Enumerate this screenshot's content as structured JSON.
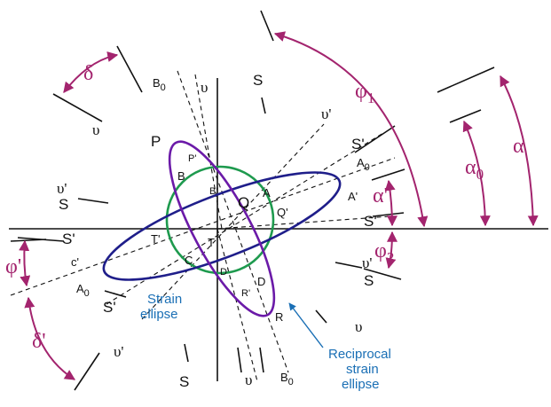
{
  "colors": {
    "strain_ellipse": "#1f1e8a",
    "reciprocal_ellipse": "#6b1aa8",
    "circle": "#1e9a4e",
    "angle_arrows": "#a3246e",
    "callout": "#1a6fb5",
    "lines": "#111111"
  },
  "labels": {
    "phi1": "φ",
    "phi1_sub": "1",
    "phi2": "φ",
    "phi2_sub": "2",
    "phi_prime": "φ'",
    "delta": "δ",
    "delta_prime": "δ'",
    "alpha": "α",
    "alpha0": "α",
    "alpha0_sub": "0",
    "alpha_prime": "α'",
    "S": "S",
    "S_prime": "S'",
    "upsilon": "υ",
    "upsilon_prime": "υ'",
    "B0": "B",
    "B0_sub": "0",
    "A0": "A",
    "A0_sub": "0",
    "P": "P",
    "P_prime": "P'",
    "B": "B",
    "B_prime": "B'",
    "Q": "Q",
    "Q_prime": "Q'",
    "A": "A",
    "A_prime": "A'",
    "T": "T",
    "T_prime": "T'",
    "C": "C",
    "C_prime": "C'",
    "D": "D",
    "D_prime": "D'",
    "R": "R",
    "R_prime": "R'",
    "c_prime": "c'"
  },
  "annotations": {
    "strain_ellipse": [
      "Strain",
      "ellipse"
    ],
    "reciprocal_ellipse": [
      "Reciprocal",
      "strain",
      "ellipse"
    ]
  }
}
